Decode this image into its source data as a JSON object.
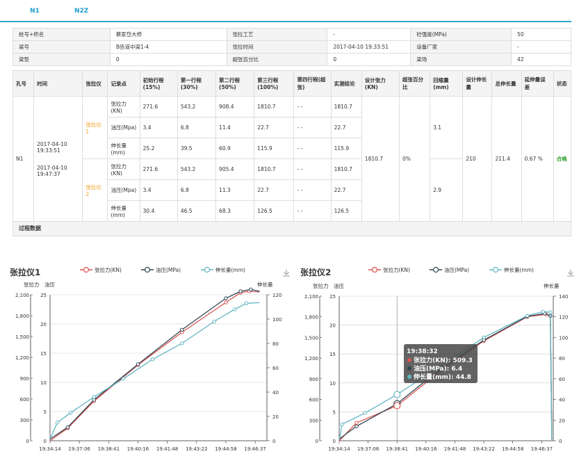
{
  "tabs": [
    {
      "label": "N1"
    },
    {
      "label": "N2Z"
    }
  ],
  "info": {
    "r1": [
      "桩号+桥名",
      "蔡家岱大桥",
      "张拉工艺",
      "-",
      "砼强度(MPa)",
      "50"
    ],
    "r2": [
      "梁号",
      "B匝道中梁1-4",
      "张拉时间",
      "2017-04-10 19:33:51",
      "设备厂家",
      "-"
    ],
    "r3": [
      "梁型",
      "0",
      "超张百分比",
      "0",
      "梁场",
      "42"
    ]
  },
  "detail": {
    "headers": [
      "孔号",
      "时间",
      "张拉仪",
      "记录点",
      "初始行程(15%)",
      "第一行程(30%)",
      "第二行程(50%)",
      "第三行程(100%)",
      "第四行程(超张)",
      "实测结论",
      "设计张力(KN)",
      "超张百分比",
      "回缩量(mm)",
      "设计伸长量",
      "总伸长量",
      "延伸量误差",
      "状态"
    ],
    "hole": "N1",
    "time1": "2017-04-10 19:33:51",
    "time2": "2017-04-10 19:47:37",
    "dev1": "张拉仪1",
    "dev2": "张拉仪2",
    "rows": [
      [
        "张拉力(KN)",
        "271.6",
        "543.2",
        "908.4",
        "1810.7",
        "- -",
        "1810.7"
      ],
      [
        "油压(Mpa)",
        "3.4",
        "6.8",
        "11.4",
        "22.7",
        "- -",
        "22.7"
      ],
      [
        "伸长量(mm)",
        "25.2",
        "39.5",
        "60.9",
        "115.9",
        "- -",
        "115.9"
      ],
      [
        "张拉力(KN)",
        "271.6",
        "543.2",
        "905.4",
        "1810.7",
        "- -",
        "1810.7"
      ],
      [
        "油压(Mpa)",
        "3.4",
        "6.8",
        "11.3",
        "22.7",
        "- -",
        "22.7"
      ],
      [
        "伸长量(mm)",
        "30.4",
        "46.5",
        "68.3",
        "126.5",
        "- -",
        "126.5"
      ]
    ],
    "design_force": "1810.7",
    "over_pct": "0%",
    "retract1": "3.1",
    "retract2": "2.9",
    "design_elong": "210",
    "total_elong": "211.4",
    "error": "0.67 %",
    "status": "合格"
  },
  "process_label": "过程数据",
  "colors": {
    "force": "#d9534f",
    "pressure": "#2f4554",
    "elong": "#61b5c2",
    "tab": "#1e9fd0"
  },
  "chart_data": [
    {
      "type": "line",
      "title": "张拉仪1",
      "legend": [
        "张拉力(KN)",
        "油压(MPa)",
        "伸长量(mm)"
      ],
      "left_label_1": "张拉力",
      "left_label_2": "油压",
      "right_label": "伸长量",
      "x": [
        "19:34:14",
        "19:37:06",
        "19:38:41",
        "19:40:16",
        "19:41:48",
        "19:43:22",
        "19:44:58",
        "19:46:37"
      ],
      "ylim_force": [
        0,
        2100
      ],
      "ylim_pressure": [
        0,
        25
      ],
      "ylim_elong": [
        0,
        120
      ],
      "force_ticks": [
        "0",
        "300",
        "600",
        "900",
        "1,200",
        "1,500",
        "1,800",
        "2,100"
      ],
      "pressure_ticks": [
        "0",
        "5",
        "10",
        "15",
        "20",
        "25"
      ],
      "elong_ticks": [
        "0",
        "20",
        "40",
        "60",
        "80",
        "100",
        "120"
      ],
      "series": [
        {
          "name": "张拉力(KN)",
          "points": [
            [
              0,
              0
            ],
            [
              0.6,
              180
            ],
            [
              1.5,
              570
            ],
            [
              3,
              1090
            ],
            [
              4.5,
              1560
            ],
            [
              6,
              1990
            ],
            [
              6.5,
              2130
            ],
            [
              6.8,
              2150
            ],
            [
              7.15,
              2140
            ]
          ]
        },
        {
          "name": "油压(MPa)",
          "points": [
            [
              0,
              0.3
            ],
            [
              0.6,
              2.3
            ],
            [
              1.5,
              7
            ],
            [
              3,
              13.1
            ],
            [
              4.5,
              19
            ],
            [
              6,
              24.4
            ],
            [
              6.5,
              25.6
            ],
            [
              6.85,
              25.9
            ],
            [
              7.15,
              25.6
            ]
          ]
        },
        {
          "name": "伸长量(mm)",
          "points": [
            [
              0,
              1.5
            ],
            [
              0.25,
              15
            ],
            [
              0.7,
              23
            ],
            [
              1.5,
              36
            ],
            [
              2.5,
              51
            ],
            [
              3.5,
              67
            ],
            [
              4.5,
              80
            ],
            [
              5.6,
              98
            ],
            [
              6.3,
              108
            ],
            [
              6.7,
              113
            ],
            [
              7.15,
              113.5
            ]
          ]
        }
      ]
    },
    {
      "type": "line",
      "title": "张拉仪2",
      "legend": [
        "张拉力(KN)",
        "油压(MPa)",
        "伸长量(mm)"
      ],
      "left_label_1": "张拉力",
      "left_label_2": "油压",
      "right_label": "伸长量",
      "x": [
        "19:34:14",
        "19:37:06",
        "19:38:41",
        "19:40:16",
        "19:41:48",
        "19:43:22",
        "19:44:58",
        "19:46:37"
      ],
      "ylim_force": [
        0,
        2100
      ],
      "ylim_pressure": [
        0,
        25
      ],
      "ylim_elong": [
        0,
        140
      ],
      "force_ticks": [
        "0",
        "300",
        "600",
        "900",
        "1,200",
        "1,500",
        "1,800",
        "2,100"
      ],
      "pressure_ticks": [
        "0",
        "5",
        "10",
        "15",
        "20",
        "25"
      ],
      "elong_ticks": [
        "0",
        "20",
        "40",
        "60",
        "80",
        "100",
        "120",
        "140"
      ],
      "series": [
        {
          "name": "张拉力(KN)",
          "points": [
            [
              0,
              0
            ],
            [
              0.6,
              260
            ],
            [
              2,
              509
            ],
            [
              3.5,
              1010
            ],
            [
              5,
              1450
            ],
            [
              6.5,
              1800
            ],
            [
              7.15,
              1835
            ],
            [
              7.3,
              1815
            ],
            [
              7.35,
              20
            ]
          ]
        },
        {
          "name": "油压(MPa)",
          "points": [
            [
              0,
              0.3
            ],
            [
              0.6,
              2.5
            ],
            [
              2,
              6.4
            ],
            [
              3.5,
              12.4
            ],
            [
              5,
              17.4
            ],
            [
              6.5,
              21.5
            ],
            [
              7.1,
              22
            ],
            [
              7.3,
              21.6
            ],
            [
              7.35,
              0.2
            ]
          ]
        },
        {
          "name": "伸长量(mm)",
          "points": [
            [
              0,
              1
            ],
            [
              0.1,
              16
            ],
            [
              0.9,
              27
            ],
            [
              2,
              44.8
            ],
            [
              3.5,
              72
            ],
            [
              5,
              100
            ],
            [
              6.5,
              121
            ],
            [
              7.05,
              125
            ],
            [
              7.3,
              124.5
            ],
            [
              7.35,
              2
            ]
          ]
        }
      ],
      "tooltip": {
        "time": "19:38:32",
        "lines": [
          "张拉力(KN): 509.3",
          "油压(MPa): 6.4",
          "伸长量(mm): 44.8"
        ]
      }
    }
  ]
}
